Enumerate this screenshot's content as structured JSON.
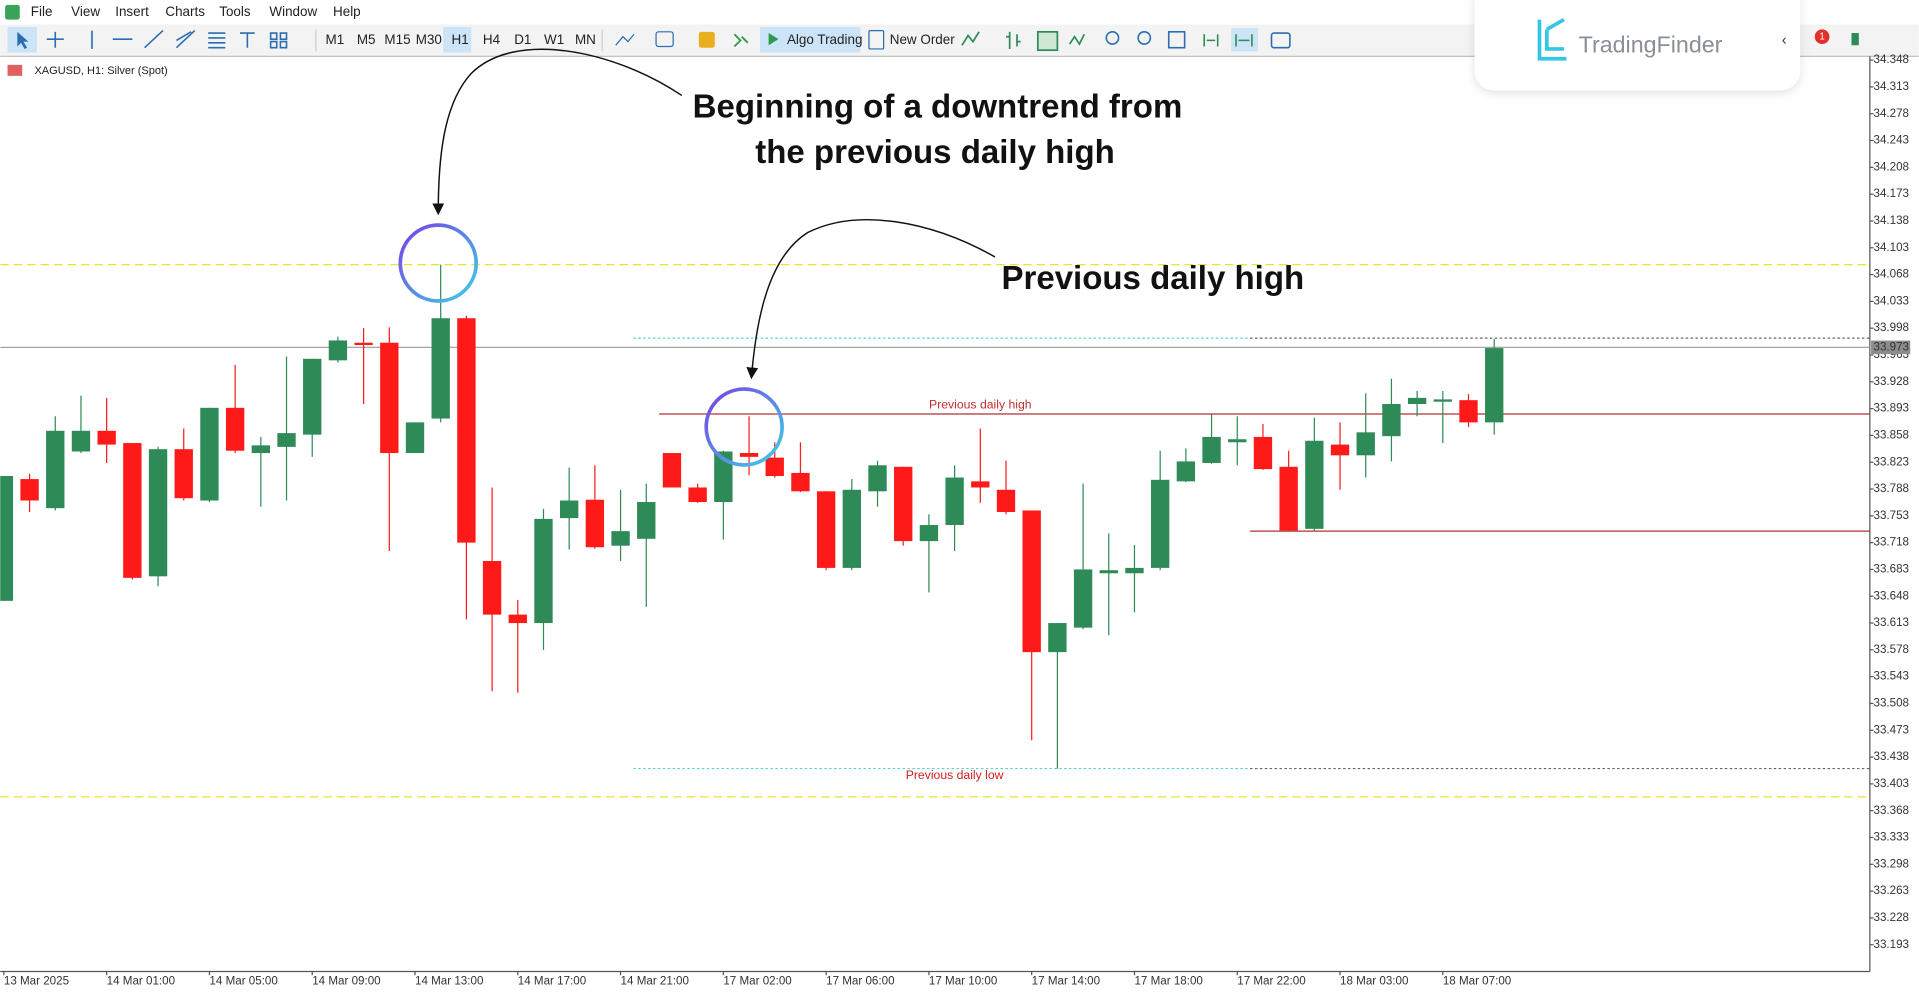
{
  "menu": [
    "File",
    "View",
    "Insert",
    "Charts",
    "Tools",
    "Window",
    "Help"
  ],
  "toolbar": {
    "timeframes": [
      "M1",
      "M5",
      "M15",
      "M30",
      "H1",
      "H4",
      "D1",
      "W1",
      "MN"
    ],
    "active": "H1",
    "algo_trading": "Algo Trading",
    "new_order": "New Order"
  },
  "logo": "TradingFinder",
  "notifications": 1,
  "chart_data": {
    "type": "candlestick",
    "title": "XAGUSD, H1:  Silver (Spot)",
    "categories": [
      "13 Mar 2025",
      null,
      null,
      null,
      "14 Mar 01:00",
      null,
      null,
      null,
      "14 Mar 05:00",
      null,
      null,
      null,
      "14 Mar 09:00",
      null,
      null,
      null,
      "14 Mar 13:00",
      null,
      null,
      null,
      "14 Mar 17:00",
      null,
      null,
      null,
      "14 Mar 21:00",
      null,
      null,
      null,
      "17 Mar 02:00",
      null,
      null,
      null,
      "17 Mar 06:00",
      null,
      null,
      null,
      "17 Mar 10:00",
      null,
      null,
      null,
      "17 Mar 14:00",
      null,
      null,
      null,
      "17 Mar 18:00",
      null,
      null,
      null,
      "17 Mar 22:00",
      null,
      null,
      null,
      "18 Mar 03:00",
      null,
      null,
      null,
      "18 Mar 07:00",
      null,
      null
    ],
    "open": [
      33.642,
      33.801,
      33.763,
      33.837,
      33.864,
      33.848,
      33.674,
      33.84,
      33.773,
      33.894,
      33.835,
      33.843,
      33.859,
      33.956,
      33.979,
      33.979,
      33.835,
      33.88,
      34.011,
      33.694,
      33.624,
      33.613,
      33.75,
      33.774,
      33.714,
      33.723,
      33.835,
      33.79,
      33.771,
      33.835,
      33.829,
      33.809,
      33.785,
      33.685,
      33.785,
      33.817,
      33.72,
      33.741,
      33.798,
      33.787,
      33.76,
      33.575,
      33.607,
      33.678,
      33.678,
      33.685,
      33.798,
      33.822,
      33.849,
      33.856,
      33.817,
      33.736,
      33.846,
      33.832,
      33.857,
      33.899,
      33.902,
      33.904,
      33.875
    ],
    "high": [
      33.805,
      33.808,
      33.883,
      33.91,
      33.907,
      33.848,
      33.843,
      33.867,
      33.894,
      33.95,
      33.856,
      33.961,
      33.958,
      33.987,
      33.998,
      33.999,
      33.875,
      34.081,
      34.014,
      33.79,
      33.643,
      33.762,
      33.816,
      33.819,
      33.787,
      33.795,
      33.835,
      33.795,
      33.838,
      33.883,
      33.849,
      33.849,
      33.785,
      33.801,
      33.825,
      33.817,
      33.755,
      33.819,
      33.867,
      33.825,
      33.76,
      33.613,
      33.795,
      33.73,
      33.715,
      33.838,
      33.841,
      33.886,
      33.883,
      33.873,
      33.838,
      33.881,
      33.875,
      33.913,
      33.932,
      33.916,
      33.916,
      33.912,
      33.984
    ],
    "low": [
      33.642,
      33.758,
      33.76,
      33.835,
      33.822,
      33.67,
      33.661,
      33.773,
      33.771,
      33.835,
      33.765,
      33.773,
      33.83,
      33.953,
      33.899,
      33.707,
      33.835,
      33.875,
      33.618,
      33.524,
      33.522,
      33.578,
      33.709,
      33.71,
      33.694,
      33.634,
      33.79,
      33.77,
      33.722,
      33.806,
      33.803,
      33.784,
      33.682,
      33.682,
      33.765,
      33.714,
      33.653,
      33.707,
      33.77,
      33.755,
      33.46,
      33.423,
      33.605,
      33.597,
      33.627,
      33.682,
      33.797,
      33.821,
      33.819,
      33.813,
      33.734,
      33.734,
      33.787,
      33.803,
      33.824,
      33.883,
      33.848,
      33.869,
      33.859
    ],
    "close": [
      33.805,
      33.773,
      33.864,
      33.864,
      33.846,
      33.672,
      33.84,
      33.776,
      33.894,
      33.838,
      33.845,
      33.861,
      33.958,
      33.982,
      33.976,
      33.835,
      33.875,
      34.011,
      33.718,
      33.624,
      33.613,
      33.749,
      33.773,
      33.712,
      33.733,
      33.771,
      33.79,
      33.771,
      33.837,
      33.83,
      33.805,
      33.785,
      33.685,
      33.787,
      33.819,
      33.72,
      33.741,
      33.803,
      33.79,
      33.758,
      33.575,
      33.613,
      33.683,
      33.682,
      33.685,
      33.8,
      33.824,
      33.856,
      33.853,
      33.814,
      33.734,
      33.851,
      33.832,
      33.862,
      33.899,
      33.907,
      33.905,
      33.875,
      33.972
    ],
    "up_color": "#2e8b57",
    "down_color": "#ff1a1a",
    "ylim": [
      33.158,
      34.353
    ],
    "yticks": [
      34.348,
      34.313,
      34.278,
      34.243,
      34.208,
      34.173,
      34.138,
      34.103,
      34.068,
      34.033,
      33.998,
      33.963,
      33.928,
      33.893,
      33.858,
      33.823,
      33.788,
      33.753,
      33.718,
      33.683,
      33.648,
      33.613,
      33.578,
      33.543,
      33.508,
      33.473,
      33.438,
      33.403,
      33.368,
      33.333,
      33.298,
      33.263,
      33.228,
      33.193
    ],
    "current_price": 33.973,
    "levels": [
      {
        "value": 34.081,
        "color": "#e6e62e",
        "style": "dashed",
        "start": 0
      },
      {
        "value": 33.386,
        "color": "#e6e62e",
        "style": "dashed",
        "start": 0
      },
      {
        "value": 33.985,
        "color": "#5fd0d0",
        "style": "dotted",
        "start": 25,
        "end": 49
      },
      {
        "value": 33.985,
        "color": "#666666",
        "style": "dotted",
        "start": 49
      },
      {
        "value": 33.886,
        "color": "#b03030",
        "style": "solid",
        "start": 26,
        "label": "Previous daily high"
      },
      {
        "value": 33.733,
        "color": "#b03030",
        "style": "solid",
        "start": 49
      },
      {
        "value": 33.423,
        "color": "#5fd0d0",
        "style": "dotted",
        "start": 25,
        "end": 49,
        "label": "Previous daily low"
      },
      {
        "value": 33.423,
        "color": "#666666",
        "style": "dotted",
        "start": 49
      }
    ],
    "annotations": [
      {
        "lines": [
          "Beginning of a downtrend from",
          "the previous daily high"
        ]
      },
      {
        "lines": [
          "Previous daily high"
        ]
      }
    ]
  }
}
